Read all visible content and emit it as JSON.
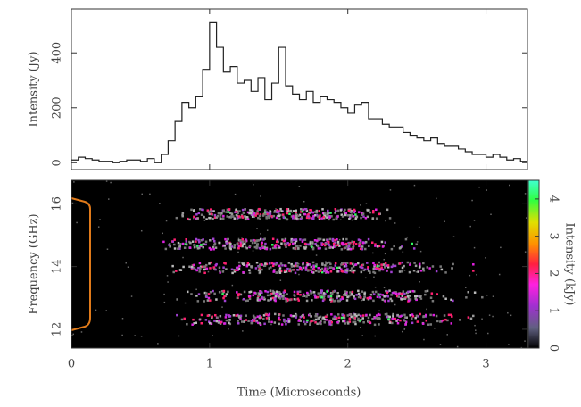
{
  "chart_data": [
    {
      "type": "step",
      "ylabel": "Intensity (Jy)",
      "color": "#222",
      "x": [
        0,
        0.05,
        0.1,
        0.15,
        0.2,
        0.25,
        0.3,
        0.35,
        0.4,
        0.45,
        0.5,
        0.55,
        0.6,
        0.65,
        0.7,
        0.75,
        0.8,
        0.85,
        0.9,
        0.95,
        1.0,
        1.05,
        1.1,
        1.15,
        1.2,
        1.25,
        1.3,
        1.35,
        1.4,
        1.45,
        1.5,
        1.55,
        1.6,
        1.65,
        1.7,
        1.75,
        1.8,
        1.85,
        1.9,
        1.95,
        2.0,
        2.05,
        2.1,
        2.15,
        2.2,
        2.25,
        2.3,
        2.35,
        2.4,
        2.45,
        2.5,
        2.55,
        2.6,
        2.65,
        2.7,
        2.75,
        2.8,
        2.85,
        2.9,
        2.95,
        3.0,
        3.05,
        3.1,
        3.15,
        3.2,
        3.25
      ],
      "values": [
        10,
        20,
        15,
        10,
        5,
        5,
        0,
        5,
        10,
        10,
        5,
        15,
        0,
        30,
        80,
        150,
        220,
        200,
        240,
        340,
        510,
        420,
        330,
        350,
        290,
        300,
        260,
        310,
        230,
        290,
        420,
        280,
        250,
        230,
        260,
        220,
        240,
        230,
        220,
        200,
        180,
        210,
        220,
        160,
        160,
        140,
        130,
        130,
        110,
        100,
        90,
        80,
        90,
        70,
        60,
        60,
        50,
        40,
        30,
        30,
        20,
        30,
        20,
        10,
        15,
        5
      ],
      "xlim": [
        0,
        3.3
      ],
      "xticks": [
        0,
        1,
        2,
        3
      ],
      "ylim": [
        -25,
        560
      ],
      "yticks": [
        0,
        200,
        400
      ]
    },
    {
      "type": "spectrogram",
      "xlabel": "Time (Microseconds)",
      "ylabel": "Frequency (GHz)",
      "xlim": [
        0,
        3.3
      ],
      "xticks": [
        0,
        1,
        2,
        3
      ],
      "ylim": [
        11.4,
        16.75
      ],
      "yticks": [
        12,
        14,
        16
      ],
      "bands": [
        {
          "freq": 15.7,
          "start": 0.75,
          "end": 2.3
        },
        {
          "freq": 14.75,
          "start": 0.65,
          "end": 2.5
        },
        {
          "freq": 14.0,
          "start": 0.7,
          "end": 2.9
        },
        {
          "freq": 13.1,
          "start": 0.75,
          "end": 3.0
        },
        {
          "freq": 12.35,
          "start": 0.75,
          "end": 2.9
        }
      ],
      "colorbar": {
        "label": "Intensity (kJy)",
        "lim": [
          0,
          4.5
        ],
        "ticks": [
          0,
          1,
          2,
          3,
          4
        ]
      }
    }
  ]
}
